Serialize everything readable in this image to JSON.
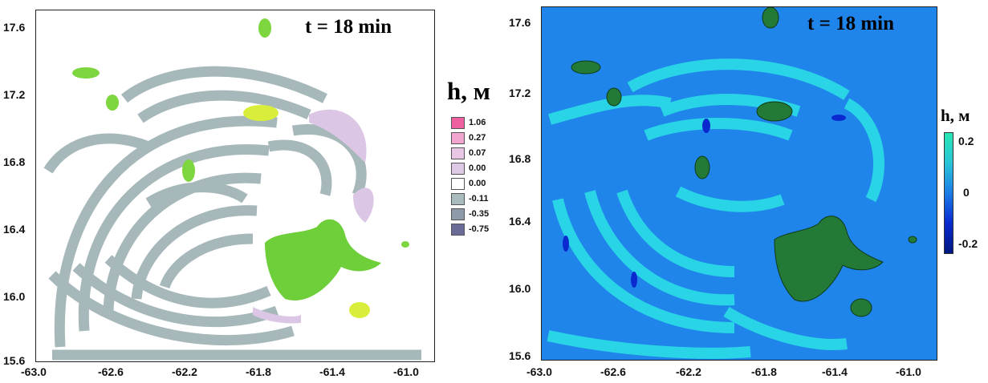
{
  "left_panel": {
    "time_label": "t = 18 min",
    "x_ticks": [
      "-63.0",
      "-62.6",
      "-62.2",
      "-61.8",
      "-61.4",
      "-61.0"
    ],
    "y_ticks": [
      "17.6",
      "17.2",
      "16.8",
      "16.4",
      "16.0",
      "15.6"
    ],
    "legend": {
      "title": "h, м",
      "items": [
        {
          "label": "1.06",
          "color": "#ee5fa0"
        },
        {
          "label": "0.27",
          "color": "#f2a6cf"
        },
        {
          "label": "0.07",
          "color": "#e8c6e6"
        },
        {
          "label": "0.00",
          "color": "#ddc9e5"
        },
        {
          "label": "0.00",
          "color": "#ffffff"
        },
        {
          "label": "-0.11",
          "color": "#a9bcbd"
        },
        {
          "label": "-0.35",
          "color": "#8f9aa9"
        },
        {
          "label": "-0.75",
          "color": "#6a6c97"
        }
      ]
    },
    "colors": {
      "background": "#ffffff",
      "wave": "#a6b8ba",
      "land": "#7ed63e",
      "land_light": "#d8ee3a",
      "positive": "#dcc6e6"
    }
  },
  "right_panel": {
    "time_label": "t = 18 min",
    "x_ticks": [
      "-63.0",
      "-62.6",
      "-62.2",
      "-61.8",
      "-61.4",
      "-61.0"
    ],
    "y_ticks": [
      "17.6",
      "17.2",
      "16.8",
      "16.4",
      "16.0",
      "15.6"
    ],
    "colorbar": {
      "title": "h, м",
      "ticks": [
        "0.2",
        "0",
        "-0.2"
      ],
      "colors": [
        "#28e8b4",
        "#29c4d8",
        "#1b7ce6",
        "#0a2ad0",
        "#001880"
      ]
    },
    "colors": {
      "background": "#1f85ea",
      "wave": "#29d4e6",
      "land": "#237a36",
      "trough": "#0a2ad0"
    }
  }
}
